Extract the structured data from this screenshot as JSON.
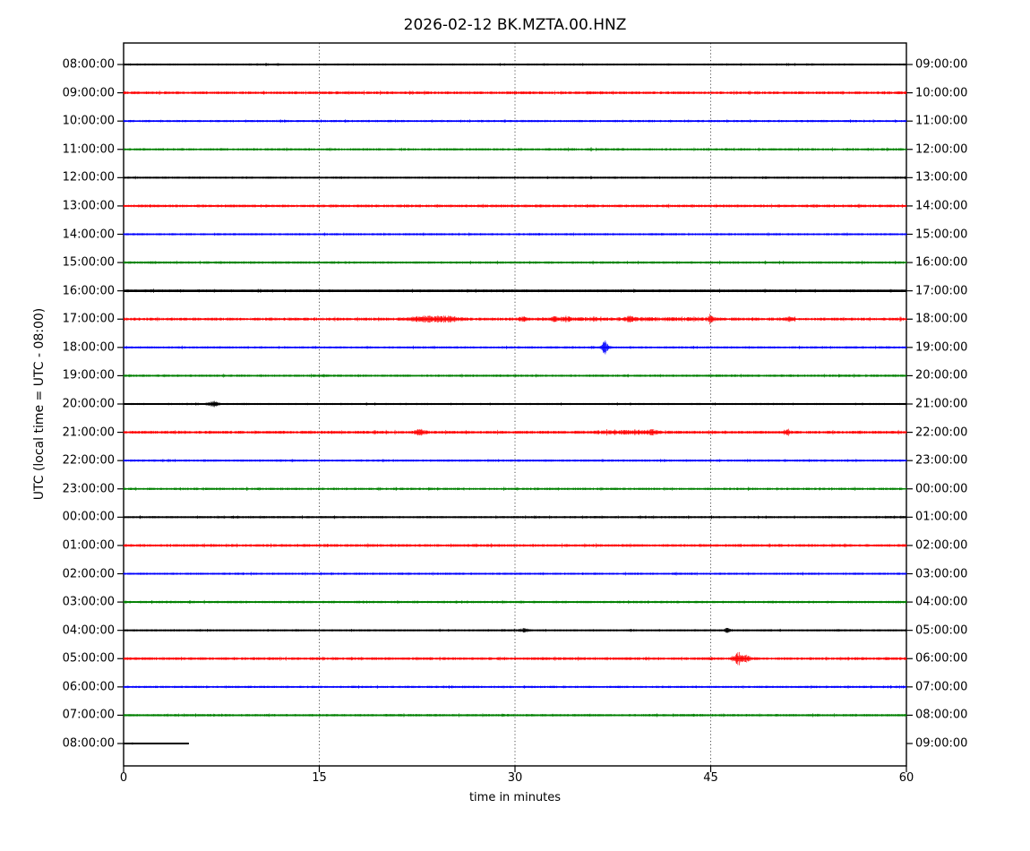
{
  "chart_data": {
    "type": "line",
    "subtype": "helicorder-dayplot",
    "title": "2026-02-12 BK.MZTA.00.HNZ",
    "xlabel": "time in minutes",
    "ylabel": "UTC (local time = UTC - 08:00)",
    "x_range": [
      0,
      60
    ],
    "x_ticks": [
      0,
      15,
      30,
      45,
      60
    ],
    "grid": {
      "vertical_dotted_at": [
        15,
        30,
        45
      ]
    },
    "trace_color_cycle": [
      "#000000",
      "#ff0000",
      "#0000ff",
      "#008000"
    ],
    "minutes_per_row": 60,
    "rows": [
      {
        "left": "08:00:00",
        "right": "09:00:00",
        "color": "#000000",
        "amp": 1.2,
        "core": 1.9,
        "events": []
      },
      {
        "left": "09:00:00",
        "right": "10:00:00",
        "color": "#ff0000",
        "amp": 1.6,
        "core": 1.5,
        "events": []
      },
      {
        "left": "10:00:00",
        "right": "11:00:00",
        "color": "#0000ff",
        "amp": 1.3,
        "core": 1.6,
        "events": []
      },
      {
        "left": "11:00:00",
        "right": "12:00:00",
        "color": "#008000",
        "amp": 1.4,
        "core": 1.6,
        "events": []
      },
      {
        "left": "12:00:00",
        "right": "13:00:00",
        "color": "#000000",
        "amp": 1.2,
        "core": 1.9,
        "events": []
      },
      {
        "left": "13:00:00",
        "right": "14:00:00",
        "color": "#ff0000",
        "amp": 1.6,
        "core": 1.5,
        "events": []
      },
      {
        "left": "14:00:00",
        "right": "15:00:00",
        "color": "#0000ff",
        "amp": 1.3,
        "core": 1.6,
        "events": []
      },
      {
        "left": "15:00:00",
        "right": "16:00:00",
        "color": "#008000",
        "amp": 1.4,
        "core": 1.6,
        "events": []
      },
      {
        "left": "16:00:00",
        "right": "17:00:00",
        "color": "#000000",
        "amp": 1.5,
        "core": 2.6,
        "events": []
      },
      {
        "left": "17:00:00",
        "right": "18:00:00",
        "color": "#ff0000",
        "amp": 1.7,
        "core": 1.5,
        "events": [
          {
            "min": 23.5,
            "amp": 2.2,
            "w": 1.6
          },
          {
            "min": 25.0,
            "amp": 1.4,
            "w": 0.8
          },
          {
            "min": 30.6,
            "amp": 1.6,
            "w": 0.3
          },
          {
            "min": 33.0,
            "amp": 1.6,
            "w": 0.35
          },
          {
            "min": 34.0,
            "amp": 1.5,
            "w": 0.3
          },
          {
            "min": 36.0,
            "amp": 1.0,
            "w": 0.3
          },
          {
            "min": 38.8,
            "amp": 2.0,
            "w": 0.25
          },
          {
            "min": 40.0,
            "amp": 0.7,
            "w": 6.0
          },
          {
            "min": 45.0,
            "amp": 2.0,
            "w": 0.25
          },
          {
            "min": 51.1,
            "amp": 1.6,
            "w": 0.3
          }
        ]
      },
      {
        "left": "18:00:00",
        "right": "19:00:00",
        "color": "#0000ff",
        "amp": 1.3,
        "core": 1.6,
        "events": [
          {
            "min": 36.9,
            "amp": 7.0,
            "w": 0.22
          }
        ]
      },
      {
        "left": "19:00:00",
        "right": "20:00:00",
        "color": "#008000",
        "amp": 1.4,
        "core": 1.6,
        "events": []
      },
      {
        "left": "20:00:00",
        "right": "21:00:00",
        "color": "#000000",
        "amp": 1.2,
        "core": 1.9,
        "events": [
          {
            "min": 6.9,
            "amp": 2.4,
            "w": 0.35
          }
        ]
      },
      {
        "left": "21:00:00",
        "right": "22:00:00",
        "color": "#ff0000",
        "amp": 1.7,
        "core": 1.5,
        "events": [
          {
            "min": 22.7,
            "amp": 2.4,
            "w": 0.4
          },
          {
            "min": 38.5,
            "amp": 1.0,
            "w": 2.5
          },
          {
            "min": 40.5,
            "amp": 1.4,
            "w": 0.4
          },
          {
            "min": 50.8,
            "amp": 1.8,
            "w": 0.25
          }
        ]
      },
      {
        "left": "22:00:00",
        "right": "23:00:00",
        "color": "#0000ff",
        "amp": 1.3,
        "core": 1.6,
        "events": []
      },
      {
        "left": "23:00:00",
        "right": "00:00:00",
        "color": "#008000",
        "amp": 1.4,
        "core": 1.6,
        "events": []
      },
      {
        "left": "00:00:00",
        "right": "01:00:00",
        "color": "#000000",
        "amp": 1.3,
        "core": 1.9,
        "events": []
      },
      {
        "left": "01:00:00",
        "right": "02:00:00",
        "color": "#ff0000",
        "amp": 1.6,
        "core": 1.5,
        "events": []
      },
      {
        "left": "02:00:00",
        "right": "03:00:00",
        "color": "#0000ff",
        "amp": 1.3,
        "core": 1.6,
        "events": []
      },
      {
        "left": "03:00:00",
        "right": "04:00:00",
        "color": "#008000",
        "amp": 1.4,
        "core": 1.8,
        "events": []
      },
      {
        "left": "04:00:00",
        "right": "05:00:00",
        "color": "#000000",
        "amp": 1.2,
        "core": 1.9,
        "events": [
          {
            "min": 30.7,
            "amp": 1.6,
            "w": 0.3
          },
          {
            "min": 46.3,
            "amp": 1.9,
            "w": 0.25
          }
        ]
      },
      {
        "left": "05:00:00",
        "right": "06:00:00",
        "color": "#ff0000",
        "amp": 1.6,
        "core": 1.5,
        "events": [
          {
            "min": 47.1,
            "amp": 6.0,
            "w": 0.28
          },
          {
            "min": 47.7,
            "amp": 2.2,
            "w": 0.4
          }
        ]
      },
      {
        "left": "06:00:00",
        "right": "07:00:00",
        "color": "#0000ff",
        "amp": 1.3,
        "core": 1.6,
        "events": []
      },
      {
        "left": "07:00:00",
        "right": "08:00:00",
        "color": "#008000",
        "amp": 1.4,
        "core": 1.8,
        "events": []
      },
      {
        "left": "08:00:00",
        "right": "09:00:00",
        "color": "#000000",
        "amp": 0.9,
        "core": 2.0,
        "end": 5.0,
        "events": []
      }
    ]
  }
}
